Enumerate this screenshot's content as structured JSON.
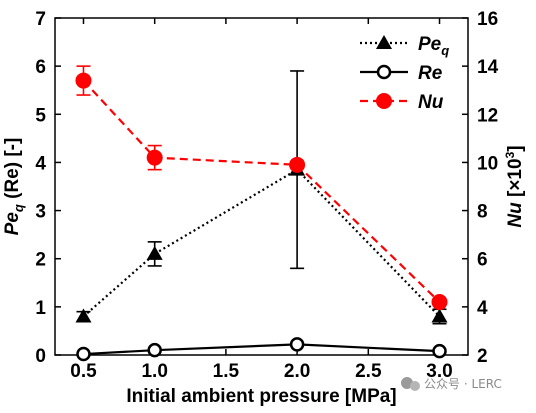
{
  "chart_data": {
    "type": "line",
    "x": [
      0.5,
      1.0,
      2.0,
      3.0
    ],
    "xlabel": "Initial ambient pressure [MPa]",
    "xlim": [
      0.3,
      3.2
    ],
    "xticks": [
      "0.5",
      "1.0",
      "1.5",
      "2.0",
      "2.5",
      "3.0"
    ],
    "ylabel_left": {
      "main": "Pe",
      "sub": "q",
      "rest": " (Re) [-]"
    },
    "ylim_left": [
      0,
      7
    ],
    "yticks_left": [
      "0",
      "1",
      "2",
      "3",
      "4",
      "5",
      "6",
      "7"
    ],
    "ylabel_right": {
      "main": "Nu",
      "rest": " [×10",
      "sup": "3",
      "end": "]"
    },
    "ylim_right": [
      2,
      16
    ],
    "yticks_right": [
      "2",
      "4",
      "6",
      "8",
      "10",
      "12",
      "14",
      "16"
    ],
    "series": [
      {
        "name": "Pe",
        "name_sub": "q",
        "axis": "left",
        "values": [
          0.8,
          2.1,
          3.85,
          0.8
        ],
        "err": [
          0.1,
          0.25,
          2.05,
          0.15
        ],
        "color": "#000000",
        "line": "dotted",
        "marker": "triangle"
      },
      {
        "name": "Re",
        "axis": "left",
        "values": [
          0.02,
          0.1,
          0.22,
          0.08
        ],
        "err": [
          0,
          0,
          0,
          0
        ],
        "color": "#000000",
        "line": "solid",
        "marker": "open-circle"
      },
      {
        "name": "Nu",
        "axis": "right",
        "values": [
          13.4,
          10.2,
          9.9,
          4.2
        ],
        "err": [
          0.6,
          0.5,
          0,
          0
        ],
        "color": "#ff0000",
        "line": "dashed",
        "marker": "filled-circle"
      }
    ],
    "legend_position": "top-right",
    "grid": false
  },
  "watermark": {
    "text": "公众号 · LERC",
    "icon": "wechat-icon"
  }
}
